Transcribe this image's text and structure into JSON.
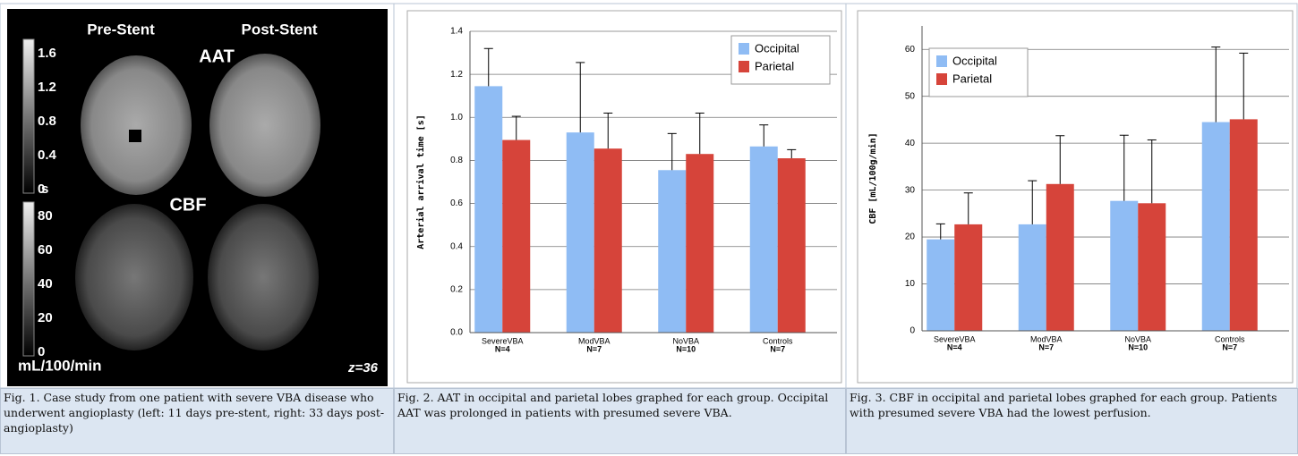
{
  "figures": [
    {
      "image": {
        "pre": "Pre-Stent",
        "post": "Post-Stent",
        "aat": "AAT",
        "cbf": "CBF",
        "aat_scale": [
          "1.6",
          "1.2",
          "0.8",
          "0.4",
          "0"
        ],
        "aat_unit": "s",
        "cbf_scale": [
          "80",
          "60",
          "40",
          "20",
          "0"
        ],
        "cbf_unit": "mL/100/min",
        "slice": "z=36"
      },
      "caption": "Fig. 1. Case study from one patient with severe VBA disease who underwent angioplasty (left: 11 days pre-stent, right: 33 days post-angioplasty)"
    },
    {
      "caption": "Fig. 2. AAT in occipital and parietal lobes graphed for each group. Occipital AAT was prolonged in patients with presumed severe VBA."
    },
    {
      "caption": "Fig. 3. CBF in occipital and parietal lobes graphed for each group. Patients with presumed severe VBA had the lowest perfusion."
    }
  ],
  "chart_data": [
    {
      "type": "bar",
      "y_label": "Arterial arrival time [s]",
      "categories": [
        "SevereVBA",
        "ModVBA",
        "NoVBA",
        "Controls"
      ],
      "category_notes": [
        "N=4",
        "N=7",
        "N=10",
        "N=7"
      ],
      "series": [
        {
          "name": "Occipital",
          "color": "#8fbcf4",
          "values": [
            1.145,
            0.93,
            0.755,
            0.865
          ],
          "errors": [
            0.175,
            0.325,
            0.17,
            0.1
          ]
        },
        {
          "name": "Parietal",
          "color": "#d6443a",
          "values": [
            0.895,
            0.855,
            0.83,
            0.81
          ],
          "errors": [
            0.11,
            0.165,
            0.19,
            0.04
          ]
        }
      ],
      "ylim": [
        0,
        1.4
      ],
      "yticks": [
        {
          "value": 0,
          "label": "0.0"
        },
        0.2,
        0.4,
        0.6,
        0.8,
        {
          "value": 1,
          "label": "1.0"
        },
        1.2,
        1.4
      ],
      "grid": true,
      "legend": "upper right"
    },
    {
      "type": "bar",
      "y_label": "CBF [mL/100g/min]",
      "categories": [
        "SevereVBA",
        "ModVBA",
        "NoVBA",
        "Controls"
      ],
      "category_notes": [
        "N=4",
        "N=7",
        "N=10",
        "N=7"
      ],
      "series": [
        {
          "name": "Occipital",
          "color": "#8fbcf4",
          "values": [
            19.5,
            22.7,
            27.7,
            44.5
          ],
          "errors": [
            3.3,
            9.3,
            14,
            16
          ]
        },
        {
          "name": "Parietal",
          "color": "#d6443a",
          "values": [
            22.7,
            31.3,
            27.2,
            45.1
          ],
          "errors": [
            6.7,
            10.3,
            13.5,
            14.1
          ]
        }
      ],
      "ylim": [
        0,
        65
      ],
      "yticks": [
        0,
        10,
        20,
        30,
        40,
        50,
        60
      ],
      "grid": true,
      "legend": "upper left"
    }
  ]
}
